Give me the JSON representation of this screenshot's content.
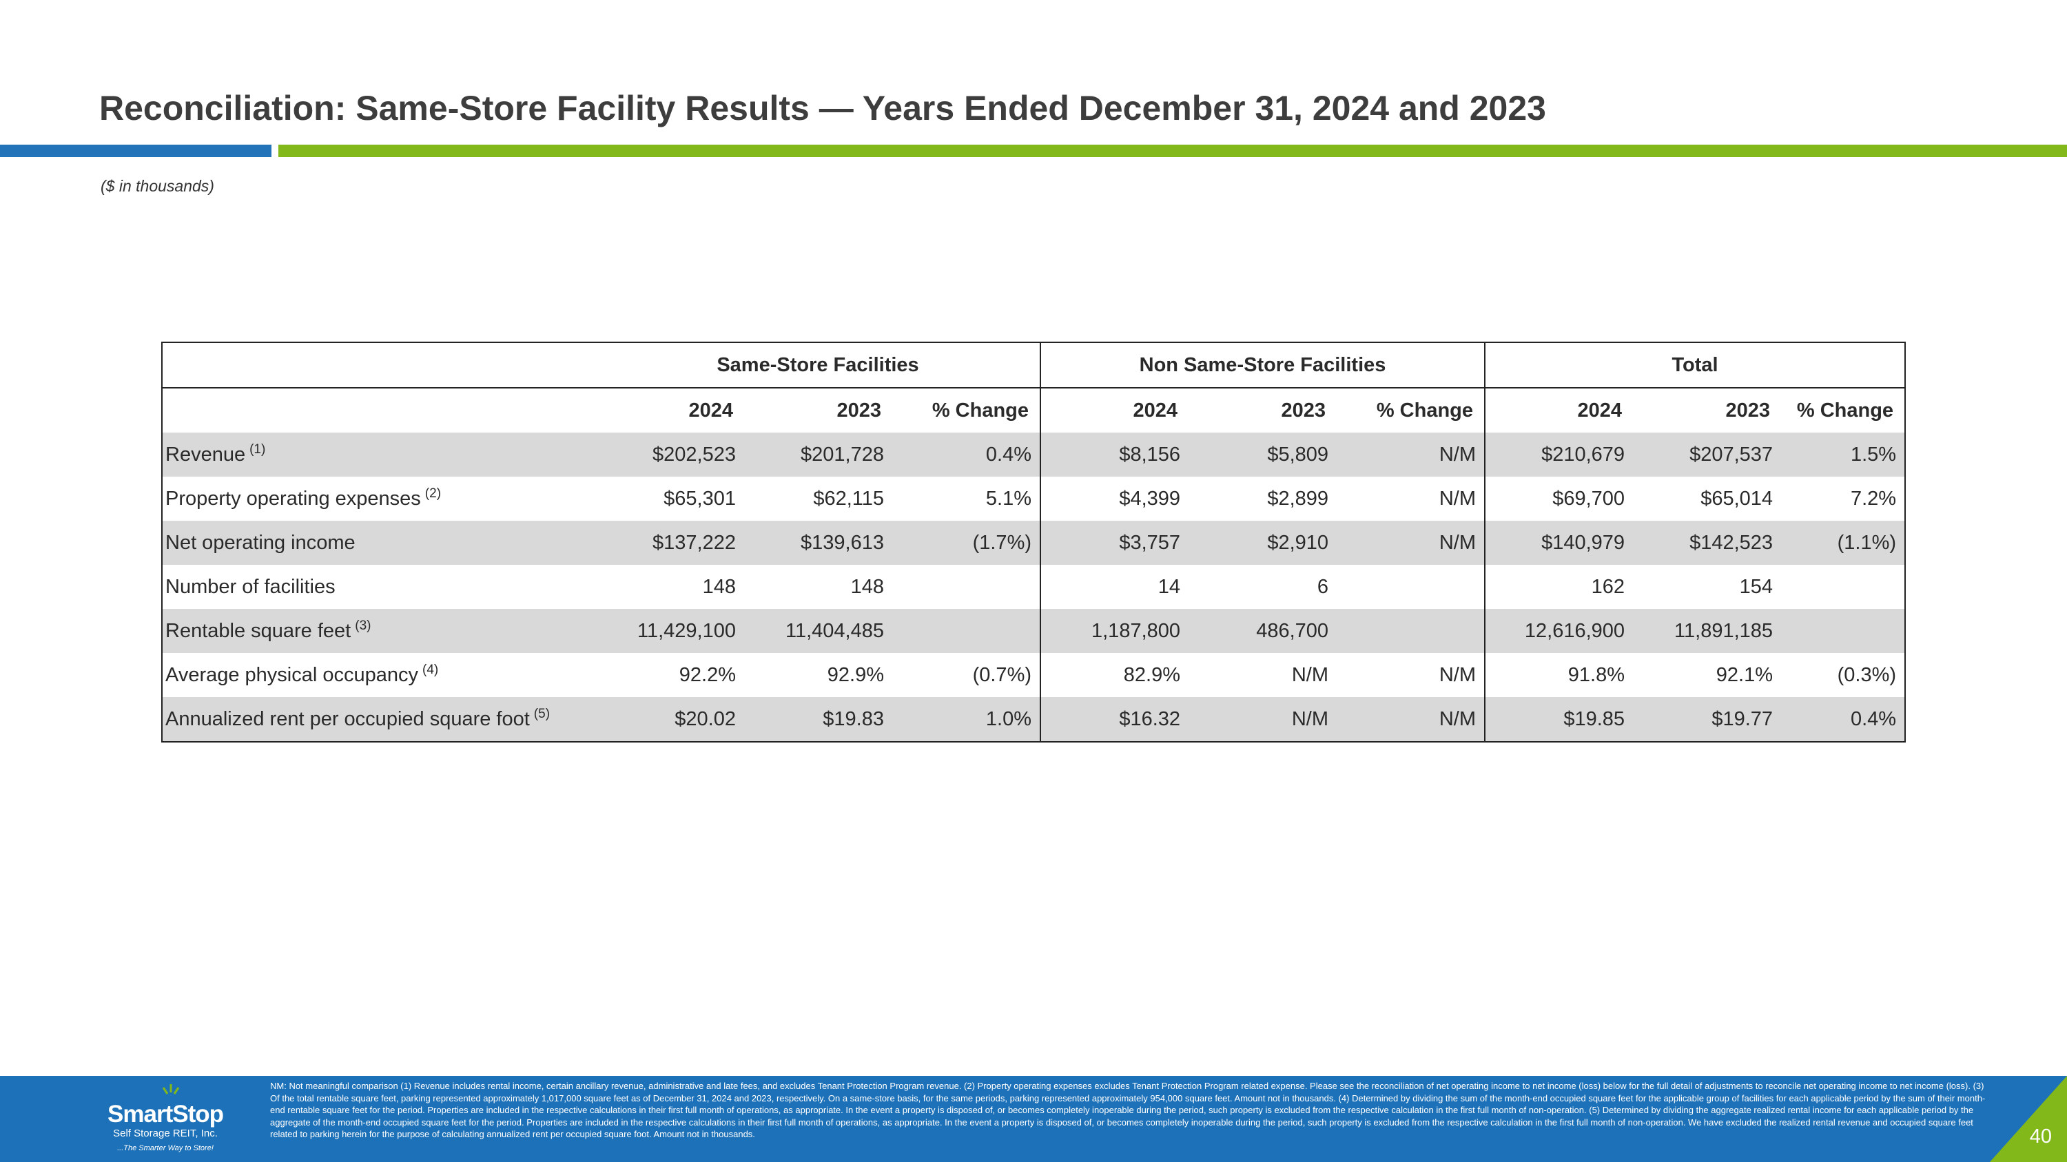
{
  "header": {
    "title": "Reconciliation: Same-Store Facility Results — Years Ended December 31, 2024 and 2023",
    "subtitle": "($ in thousands)"
  },
  "table": {
    "groups": [
      "Same-Store Facilities",
      "Non Same-Store Facilities",
      "Total"
    ],
    "subheaders": [
      "2024",
      "2023",
      "% Change",
      "2024",
      "2023",
      "% Change",
      "2024",
      "2023",
      "% Change"
    ],
    "rows": [
      {
        "label": "Revenue",
        "note": "(1)",
        "values": [
          "$202,523",
          "$201,728",
          "0.4%",
          "$8,156",
          "$5,809",
          "N/M",
          "$210,679",
          "$207,537",
          "1.5%"
        ]
      },
      {
        "label": "Property operating expenses",
        "note": "(2)",
        "values": [
          "$65,301",
          "$62,115",
          "5.1%",
          "$4,399",
          "$2,899",
          "N/M",
          "$69,700",
          "$65,014",
          "7.2%"
        ]
      },
      {
        "label": "Net operating income",
        "note": "",
        "values": [
          "$137,222",
          "$139,613",
          "(1.7%)",
          "$3,757",
          "$2,910",
          "N/M",
          "$140,979",
          "$142,523",
          "(1.1%)"
        ]
      },
      {
        "label": "Number of facilities",
        "note": "",
        "values": [
          "148",
          "148",
          "",
          "14",
          "6",
          "",
          "162",
          "154",
          ""
        ]
      },
      {
        "label": "Rentable square feet",
        "note": "(3)",
        "values": [
          "11,429,100",
          "11,404,485",
          "",
          "1,187,800",
          "486,700",
          "",
          "12,616,900",
          "11,891,185",
          ""
        ]
      },
      {
        "label": "Average physical occupancy",
        "note": "(4)",
        "values": [
          "92.2%",
          "92.9%",
          "(0.7%)",
          "82.9%",
          "N/M",
          "N/M",
          "91.8%",
          "92.1%",
          "(0.3%)"
        ]
      },
      {
        "label": "Annualized rent per occupied square foot",
        "note": "(5)",
        "values": [
          "$20.02",
          "$19.83",
          "1.0%",
          "$16.32",
          "N/M",
          "N/M",
          "$19.85",
          "$19.77",
          "0.4%"
        ]
      }
    ]
  },
  "footer": {
    "notes": "NM: Not meaningful comparison  (1) Revenue includes rental income, certain ancillary revenue, administrative and late fees, and excludes Tenant Protection Program revenue. (2) Property operating expenses excludes Tenant Protection Program related expense. Please see the reconciliation of net operating income to net income (loss) below for the full detail of adjustments to reconcile net operating income to net income (loss). (3) Of the total rentable square feet, parking represented approximately 1,017,000 square feet as of December 31, 2024 and 2023, respectively. On a same-store basis, for the same periods, parking represented approximately 954,000 square feet. Amount not in thousands. (4) Determined by dividing the sum of the month-end occupied square feet for the applicable group of facilities for each applicable period by the sum of their month-end rentable square feet for the period.  Properties are included in the respective calculations in their first full month of operations, as appropriate. In the event a property is disposed of, or becomes completely inoperable during the period, such property is excluded from the respective calculation in the first full month of non-operation. (5) Determined by dividing the aggregate realized rental income for each applicable period by the aggregate of the month-end occupied square feet for the period. Properties are included in the respective calculations in their first full month of operations, as appropriate. In the event a property is disposed of, or becomes completely inoperable during the period, such property is excluded from the respective calculation in the first full month of non-operation. We have excluded the realized rental revenue and occupied square feet related to parking herein for the purpose of calculating annualized rent per occupied square foot. Amount not in thousands.",
    "page_number": "40",
    "logo": {
      "brand": "SmartStop",
      "sub": "Self Storage REIT, Inc.",
      "tagline": "...The Smarter Way to Store!"
    }
  },
  "colors": {
    "brand_blue": "#1d71b8",
    "accent_blue": "#2273b8",
    "accent_green": "#82b81a",
    "row_shade": "#d9d9d9"
  }
}
